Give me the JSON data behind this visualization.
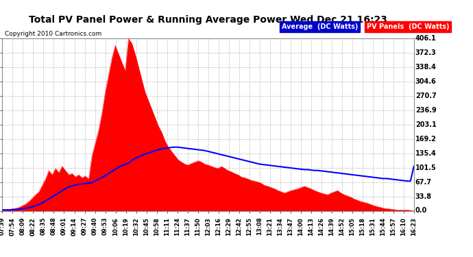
{
  "title": "Total PV Panel Power & Running Average Power Wed Dec 21 16:23",
  "copyright": "Copyright 2010 Cartronics.com",
  "legend_avg": "Average  (DC Watts)",
  "legend_pv": "PV Panels  (DC Watts)",
  "ymax": 406.1,
  "yticks": [
    0.0,
    33.8,
    67.7,
    101.5,
    135.4,
    169.2,
    203.1,
    236.9,
    270.7,
    304.6,
    338.4,
    372.3,
    406.1
  ],
  "bg_color": "#ffffff",
  "plot_bg_color": "#ffffff",
  "grid_color": "#aaaaaa",
  "pv_color": "#ff0000",
  "avg_color": "#0000ff",
  "x_labels": [
    "07:39",
    "07:54",
    "08:09",
    "08:22",
    "08:35",
    "08:48",
    "09:01",
    "09:14",
    "09:27",
    "09:40",
    "09:53",
    "10:06",
    "10:19",
    "10:32",
    "10:45",
    "10:58",
    "11:11",
    "11:24",
    "11:37",
    "11:50",
    "12:03",
    "12:16",
    "12:29",
    "12:42",
    "12:55",
    "13:08",
    "13:21",
    "13:34",
    "13:47",
    "14:00",
    "14:13",
    "14:26",
    "14:39",
    "14:52",
    "15:05",
    "15:18",
    "15:31",
    "15:44",
    "15:57",
    "16:10",
    "16:23"
  ],
  "pv_values": [
    2,
    2,
    3,
    4,
    6,
    8,
    12,
    16,
    22,
    30,
    38,
    45,
    60,
    75,
    95,
    85,
    100,
    90,
    105,
    95,
    85,
    88,
    80,
    85,
    78,
    82,
    75,
    130,
    160,
    190,
    230,
    280,
    320,
    360,
    390,
    370,
    350,
    330,
    406,
    395,
    370,
    340,
    310,
    280,
    260,
    240,
    220,
    200,
    185,
    165,
    150,
    140,
    130,
    120,
    115,
    110,
    108,
    112,
    115,
    118,
    115,
    110,
    108,
    105,
    102,
    100,
    105,
    100,
    95,
    92,
    88,
    85,
    80,
    78,
    75,
    72,
    70,
    68,
    65,
    60,
    58,
    55,
    52,
    48,
    45,
    42,
    45,
    48,
    50,
    52,
    55,
    58,
    55,
    52,
    48,
    45,
    42,
    40,
    38,
    42,
    45,
    48,
    42,
    38,
    35,
    32,
    28,
    25,
    22,
    20,
    18,
    15,
    12,
    10,
    8,
    6,
    5,
    4,
    3,
    2,
    2,
    2,
    2,
    1,
    0
  ],
  "avg_values": [
    2,
    2,
    2,
    3,
    3,
    4,
    5,
    6,
    8,
    10,
    13,
    16,
    20,
    25,
    30,
    35,
    40,
    45,
    50,
    55,
    58,
    60,
    62,
    63,
    64,
    65,
    66,
    70,
    74,
    78,
    83,
    88,
    93,
    98,
    103,
    107,
    110,
    113,
    120,
    125,
    128,
    132,
    135,
    137,
    140,
    143,
    145,
    147,
    148,
    149,
    150,
    150,
    149,
    148,
    147,
    146,
    145,
    144,
    143,
    142,
    140,
    138,
    136,
    134,
    132,
    130,
    128,
    126,
    124,
    122,
    120,
    118,
    116,
    114,
    112,
    110,
    109,
    108,
    107,
    106,
    105,
    104,
    103,
    102,
    101,
    100,
    99,
    98,
    97,
    97,
    96,
    95,
    95,
    94,
    93,
    92,
    91,
    90,
    89,
    88,
    87,
    86,
    85,
    84,
    83,
    82,
    81,
    80,
    79,
    78,
    77,
    76,
    76,
    75,
    74,
    73,
    72,
    71,
    70,
    70,
    105
  ]
}
